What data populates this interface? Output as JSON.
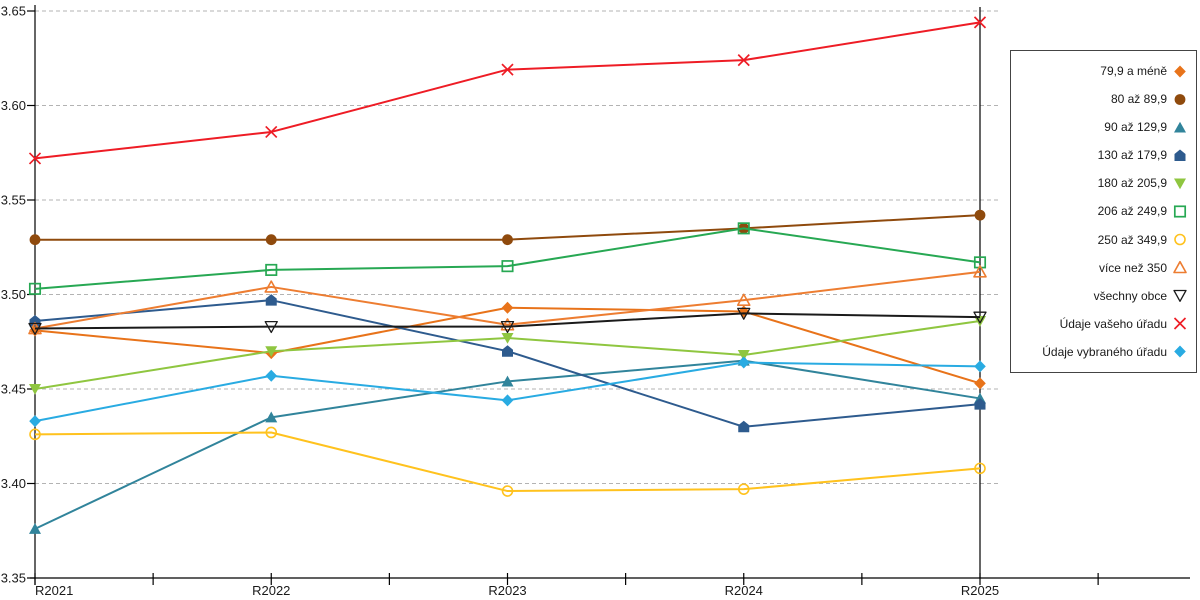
{
  "chart_data": {
    "type": "line",
    "title": "",
    "xlabel": "",
    "ylabel": "",
    "x_categories": [
      "R2021",
      "R2022",
      "R2023",
      "R2024",
      "R2025"
    ],
    "y_ticks": [
      "3.65",
      "3.60",
      "3.55",
      "3.50",
      "3.45",
      "3.40",
      "3.35"
    ],
    "ylim": [
      3.35,
      3.65
    ],
    "grid": "horizontal-dashed",
    "legend_position": "right",
    "series": [
      {
        "name": "79,9 a méně",
        "marker": "diamond-filled",
        "color": "#e8731a",
        "values": [
          3.481,
          3.469,
          3.493,
          3.491,
          3.453
        ]
      },
      {
        "name": "80 až 89,9",
        "marker": "circle-filled",
        "color": "#8f4a0d",
        "values": [
          3.529,
          3.529,
          3.529,
          3.535,
          3.542
        ]
      },
      {
        "name": "90 až 129,9",
        "marker": "triangle-up-filled",
        "color": "#31849b",
        "values": [
          3.376,
          3.435,
          3.454,
          3.465,
          3.445
        ]
      },
      {
        "name": "130 až 179,9",
        "marker": "pentagon-filled",
        "color": "#2e5b8e",
        "values": [
          3.486,
          3.497,
          3.47,
          3.43,
          3.442
        ]
      },
      {
        "name": "180 až 205,9",
        "marker": "triangle-down-filled",
        "color": "#8fc640",
        "values": [
          3.45,
          3.47,
          3.477,
          3.468,
          3.486
        ]
      },
      {
        "name": "206 až 249,9",
        "marker": "square-open",
        "color": "#27a853",
        "values": [
          3.503,
          3.513,
          3.515,
          3.535,
          3.517
        ]
      },
      {
        "name": "250 až 349,9",
        "marker": "circle-open",
        "color": "#ffc21e",
        "values": [
          3.426,
          3.427,
          3.396,
          3.397,
          3.408
        ]
      },
      {
        "name": "více než 350",
        "marker": "triangle-up-open",
        "color": "#ed7d31",
        "values": [
          3.482,
          3.504,
          3.484,
          3.497,
          3.512
        ]
      },
      {
        "name": "všechny obce",
        "marker": "triangle-down-open",
        "color": "#1a1a1a",
        "values": [
          3.482,
          3.483,
          3.483,
          3.49,
          3.488
        ]
      },
      {
        "name": "Údaje vašeho úřadu",
        "marker": "x-mark",
        "color": "#ee1c25",
        "values": [
          3.572,
          3.586,
          3.619,
          3.624,
          3.644
        ]
      },
      {
        "name": "Údaje vybraného úřadu",
        "marker": "diamond-filled",
        "color": "#29abe2",
        "values": [
          3.433,
          3.457,
          3.444,
          3.464,
          3.462
        ]
      }
    ]
  }
}
